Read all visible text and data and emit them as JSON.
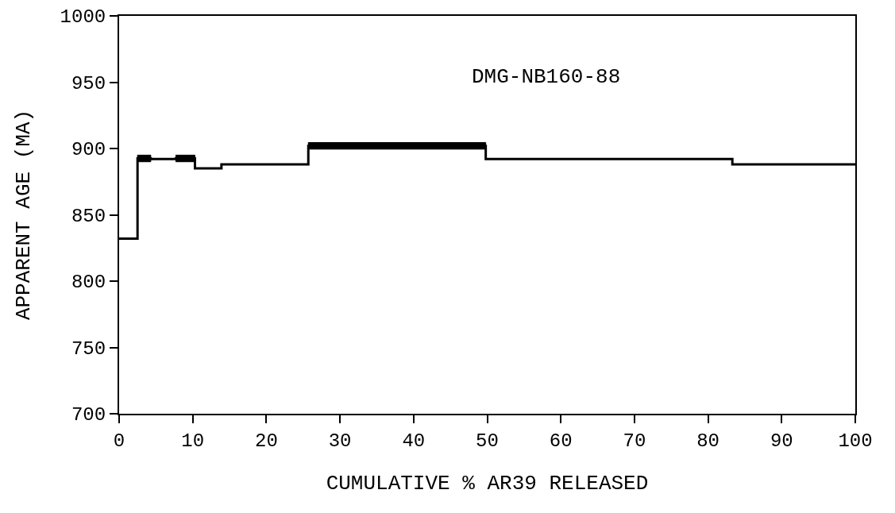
{
  "chart_data": {
    "type": "step",
    "xlabel": "CUMULATIVE % AR39 RELEASED",
    "ylabel": "APPARENT AGE (MA)",
    "annotations": [
      "DMG-NB160-88"
    ],
    "series": [
      {
        "color": "#000000",
        "x": [
          0,
          2.5,
          2.5,
          4.3,
          4.3,
          7.7,
          10.3,
          10.3,
          13.9,
          25.7,
          49.8,
          49.8,
          83.3,
          100
        ],
        "values": [
          832,
          832,
          892.5,
          892.5,
          892,
          892.5,
          892.5,
          885,
          888,
          902,
          902,
          892,
          888,
          888
        ],
        "lower": [
          null,
          null,
          890,
          890,
          null,
          890,
          890,
          null,
          null,
          899.5,
          899.5,
          null,
          null,
          null
        ],
        "upper": [
          null,
          null,
          895,
          895,
          null,
          895,
          895,
          null,
          null,
          904.5,
          904.5,
          null,
          null,
          null
        ]
      }
    ],
    "xlim": [
      0,
      100
    ],
    "xticks": [
      0,
      10,
      20,
      30,
      40,
      50,
      60,
      70,
      80,
      90,
      100
    ],
    "ylim": [
      700,
      1000
    ],
    "yticks": [
      700,
      750,
      800,
      850,
      900,
      950,
      1000
    ],
    "marker": "none",
    "line_style": "solid"
  }
}
